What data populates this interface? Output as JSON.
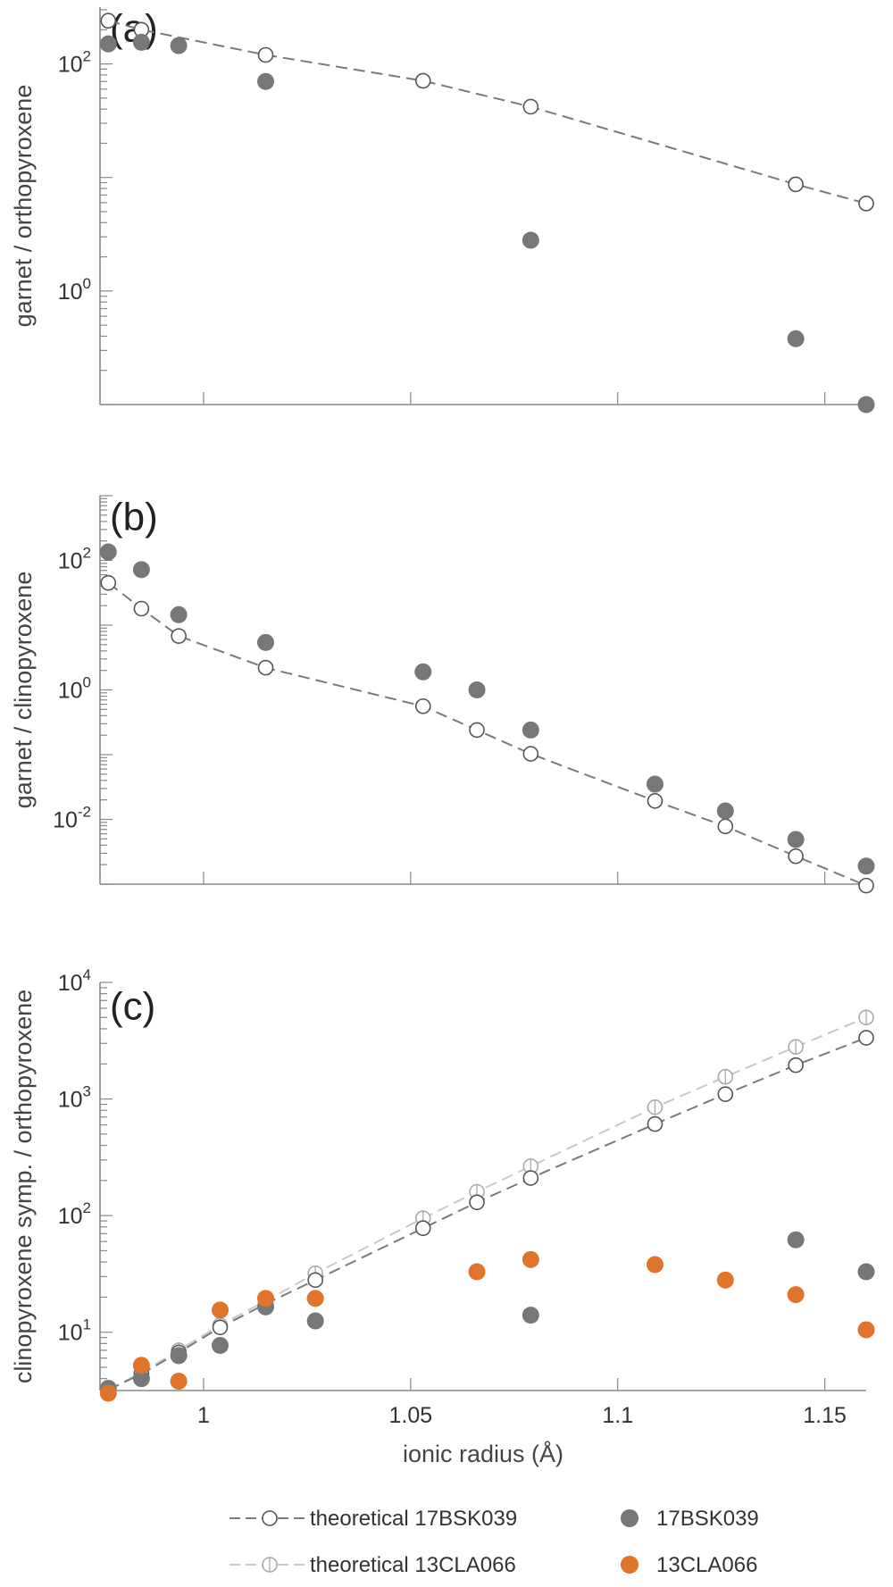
{
  "legend": {
    "theoretical_17BSK039": "theoretical 17BSK039",
    "theoretical_13CLA066": "theoretical 13CLA066",
    "obs_17BSK039": "17BSK039",
    "obs_13CLA066": "13CLA066"
  },
  "colors": {
    "theo_17BSK039": "#7a7a7a",
    "theo_13CLA066": "#c8c8c8",
    "obs_17BSK039": "#777777",
    "obs_13CLA066": "#e0742a",
    "axis": "#888888"
  },
  "chart_data": [
    {
      "type": "scatter",
      "panel_label": "(a)",
      "ylabel": "garnet / orthopyroxene",
      "xlabel": "",
      "xlim": [
        0.975,
        1.16
      ],
      "ylim_log10": [
        -1.0,
        2.5
      ],
      "yscale": "log",
      "x_ticks": [
        1,
        1.05,
        1.1,
        1.15
      ],
      "y_tick_labels": [
        {
          "base": "10",
          "exp": "0",
          "value": 1
        },
        {
          "base": "10",
          "exp": "2",
          "value": 100
        }
      ],
      "series": [
        {
          "name": "theoretical 17BSK039",
          "style": "line-open-circle",
          "x": [
            0.977,
            0.985,
            1.015,
            1.053,
            1.079,
            1.143,
            1.16
          ],
          "y": [
            240,
            200,
            120,
            71,
            42,
            8.7,
            5.9
          ]
        },
        {
          "name": "17BSK039",
          "style": "filled-circle",
          "x": [
            0.977,
            0.985,
            0.994,
            1.015,
            1.079,
            1.143,
            1.16
          ],
          "y": [
            150,
            155,
            145,
            70,
            2.8,
            0.38,
            0.1
          ]
        }
      ]
    },
    {
      "type": "scatter",
      "panel_label": "(b)",
      "ylabel": "garnet / clinopyroxene",
      "xlabel": "",
      "xlim": [
        0.975,
        1.16
      ],
      "ylim_log10": [
        -3.0,
        3.0
      ],
      "yscale": "log",
      "x_ticks": [
        1,
        1.05,
        1.1,
        1.15
      ],
      "y_tick_labels": [
        {
          "base": "10",
          "exp": "-2",
          "value": 0.01
        },
        {
          "base": "10",
          "exp": "0",
          "value": 1
        },
        {
          "base": "10",
          "exp": "2",
          "value": 100
        }
      ],
      "series": [
        {
          "name": "theoretical 17BSK039",
          "style": "line-open-circle",
          "x": [
            0.977,
            0.985,
            0.994,
            1.015,
            1.053,
            1.066,
            1.079,
            1.109,
            1.126,
            1.143,
            1.16
          ],
          "y": [
            45,
            18,
            6.8,
            2.2,
            0.56,
            0.24,
            0.103,
            0.0193,
            0.0078,
            0.0027,
            0.00095
          ]
        },
        {
          "name": "17BSK039",
          "style": "filled-circle",
          "x": [
            0.977,
            0.985,
            0.994,
            1.015,
            1.053,
            1.066,
            1.079,
            1.109,
            1.126,
            1.143,
            1.16
          ],
          "y": [
            135,
            72,
            14.5,
            5.4,
            1.9,
            1.0,
            0.24,
            0.035,
            0.0135,
            0.0049,
            0.0019
          ]
        }
      ]
    },
    {
      "type": "scatter",
      "panel_label": "(c)",
      "ylabel": "clinopyroxene symp. / orthopyroxene",
      "xlabel": "ionic radius (Å)",
      "xlim": [
        0.975,
        1.16
      ],
      "ylim_log10": [
        0.5,
        4.0
      ],
      "yscale": "log",
      "x_ticks": [
        1,
        1.05,
        1.1,
        1.15
      ],
      "y_tick_labels": [
        {
          "base": "10",
          "exp": "1",
          "value": 10
        },
        {
          "base": "10",
          "exp": "2",
          "value": 100
        },
        {
          "base": "10",
          "exp": "3",
          "value": 1000
        },
        {
          "base": "10",
          "exp": "4",
          "value": 10000
        }
      ],
      "series": [
        {
          "name": "theoretical 13CLA066",
          "style": "line-half-circle",
          "x": [
            0.977,
            0.985,
            0.994,
            1.004,
            1.015,
            1.027,
            1.053,
            1.066,
            1.079,
            1.109,
            1.126,
            1.143,
            1.16
          ],
          "y": [
            3.2,
            4.5,
            7.0,
            11.5,
            18.5,
            32,
            95,
            160,
            265,
            850,
            1550,
            2800,
            5000
          ]
        },
        {
          "name": "theoretical 17BSK039",
          "style": "line-open-circle",
          "x": [
            0.977,
            0.985,
            0.994,
            1.004,
            1.015,
            1.027,
            1.053,
            1.066,
            1.079,
            1.109,
            1.126,
            1.143,
            1.16
          ],
          "y": [
            3.2,
            4.4,
            6.7,
            11.0,
            17.5,
            28,
            78,
            130,
            210,
            610,
            1100,
            1950,
            3350
          ]
        },
        {
          "name": "17BSK039",
          "style": "filled-circle",
          "x": [
            0.977,
            0.985,
            0.994,
            1.004,
            1.015,
            1.027,
            1.079,
            1.143,
            1.16
          ],
          "y": [
            3.3,
            4.0,
            6.3,
            7.7,
            16.5,
            12.5,
            14,
            62,
            33
          ]
        },
        {
          "name": "13CLA066",
          "style": "filled-circle",
          "x": [
            0.977,
            0.985,
            0.994,
            1.004,
            1.015,
            1.027,
            1.066,
            1.079,
            1.109,
            1.126,
            1.143,
            1.16
          ],
          "y": [
            3.0,
            5.2,
            3.8,
            15.5,
            19.5,
            19.5,
            33,
            42,
            38,
            28,
            21,
            10.5
          ]
        }
      ]
    }
  ]
}
